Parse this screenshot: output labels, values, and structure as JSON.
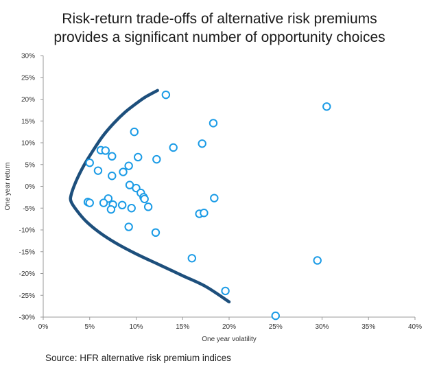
{
  "chart_data": {
    "type": "scatter",
    "title_line1": "Risk-return trade-offs of alternative risk premiums",
    "title_line2": "provides a significant number of opportunity choices",
    "xlabel": "One year volatility",
    "ylabel": "One year return",
    "xlim": [
      0,
      40
    ],
    "ylim": [
      -30,
      30
    ],
    "x_ticks": [
      "0%",
      "5%",
      "10%",
      "15%",
      "20%",
      "25%",
      "30%",
      "35%",
      "40%"
    ],
    "y_ticks": [
      "30%",
      "25%",
      "20%",
      "15%",
      "10%",
      "5%",
      "0%",
      "-5%",
      "-10%",
      "-15%",
      "-20%",
      "-25%",
      "-30%"
    ],
    "grid": false,
    "colors": {
      "points": "#1a9be6",
      "frontier": "#1d4f7c"
    },
    "frontier": [
      [
        12.3,
        22.0
      ],
      [
        11.0,
        20.5
      ],
      [
        10.0,
        19.0
      ],
      [
        8.8,
        17.0
      ],
      [
        7.6,
        14.5
      ],
      [
        6.4,
        11.5
      ],
      [
        5.3,
        8.0
      ],
      [
        4.3,
        4.5
      ],
      [
        3.5,
        1.0
      ],
      [
        3.0,
        -2.0
      ],
      [
        3.0,
        -3.5
      ],
      [
        3.6,
        -5.5
      ],
      [
        4.6,
        -8.0
      ],
      [
        6.0,
        -10.5
      ],
      [
        7.8,
        -13.0
      ],
      [
        10.0,
        -15.5
      ],
      [
        12.5,
        -18.0
      ],
      [
        15.0,
        -20.5
      ],
      [
        17.5,
        -23.0
      ],
      [
        20.0,
        -26.5
      ]
    ],
    "points": [
      [
        13.2,
        21.0
      ],
      [
        30.5,
        18.3
      ],
      [
        9.8,
        12.5
      ],
      [
        18.3,
        14.5
      ],
      [
        6.2,
        8.3
      ],
      [
        6.7,
        8.2
      ],
      [
        7.4,
        6.9
      ],
      [
        10.2,
        6.7
      ],
      [
        12.2,
        6.2
      ],
      [
        14.0,
        8.9
      ],
      [
        17.1,
        9.8
      ],
      [
        5.0,
        5.4
      ],
      [
        5.9,
        3.6
      ],
      [
        7.4,
        2.4
      ],
      [
        8.6,
        3.3
      ],
      [
        9.2,
        4.7
      ],
      [
        9.3,
        0.3
      ],
      [
        10.0,
        -0.4
      ],
      [
        10.5,
        -1.5
      ],
      [
        10.8,
        -2.5
      ],
      [
        10.9,
        -2.9
      ],
      [
        7.0,
        -2.8
      ],
      [
        4.8,
        -3.6
      ],
      [
        5.0,
        -3.8
      ],
      [
        6.5,
        -3.8
      ],
      [
        7.5,
        -4.2
      ],
      [
        8.5,
        -4.3
      ],
      [
        9.5,
        -5.0
      ],
      [
        7.3,
        -5.3
      ],
      [
        11.3,
        -4.7
      ],
      [
        18.4,
        -2.7
      ],
      [
        16.8,
        -6.3
      ],
      [
        17.3,
        -6.1
      ],
      [
        9.2,
        -9.3
      ],
      [
        12.1,
        -10.6
      ],
      [
        16.0,
        -16.5
      ],
      [
        29.5,
        -17.0
      ],
      [
        19.6,
        -24.0
      ],
      [
        25.0,
        -29.7
      ]
    ]
  },
  "source": "Source: HFR alternative risk premium indices"
}
